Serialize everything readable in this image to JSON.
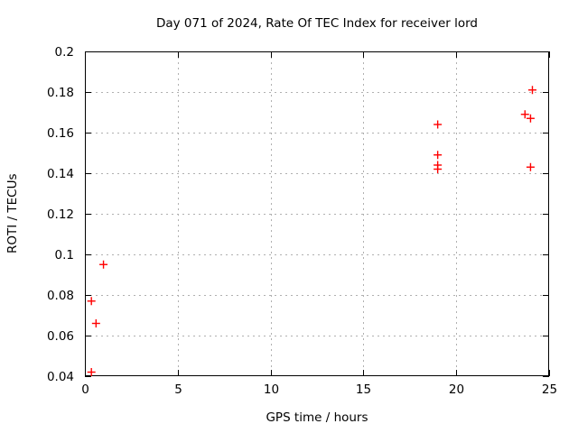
{
  "chart_data": {
    "type": "scatter",
    "title": "Day 071 of 2024, Rate Of TEC Index for receiver lord",
    "xlabel": "GPS time / hours",
    "ylabel": "ROTI / TECUs",
    "xlim": [
      0,
      25
    ],
    "ylim": [
      0.04,
      0.2
    ],
    "xticks": {
      "values": [
        0,
        5,
        10,
        15,
        20,
        25
      ],
      "labels": [
        "0",
        "5",
        "10",
        "15",
        "20",
        "25"
      ]
    },
    "yticks": {
      "values": [
        0.04,
        0.06,
        0.08,
        0.1,
        0.12,
        0.14,
        0.16,
        0.18,
        0.2
      ],
      "labels": [
        "0.04",
        "0.06",
        "0.08",
        "0.1",
        "0.12",
        "0.14",
        "0.16",
        "0.18",
        "0.2"
      ]
    },
    "grid": "dashed",
    "legend": "none",
    "marker": "plus",
    "series": [
      {
        "points": [
          [
            0.35,
            0.042
          ],
          [
            0.35,
            0.077
          ],
          [
            0.6,
            0.066
          ],
          [
            1.0,
            0.095
          ],
          [
            19.0,
            0.142
          ],
          [
            19.0,
            0.144
          ],
          [
            19.0,
            0.149
          ],
          [
            19.0,
            0.164
          ],
          [
            23.7,
            0.169
          ],
          [
            24.0,
            0.143
          ],
          [
            24.0,
            0.167
          ],
          [
            24.1,
            0.181
          ]
        ]
      }
    ],
    "colors": {
      "marker": "#ff0000",
      "grid": "#b0b0b0",
      "axis": "#000000",
      "text": "#000000",
      "background": "#ffffff"
    }
  }
}
